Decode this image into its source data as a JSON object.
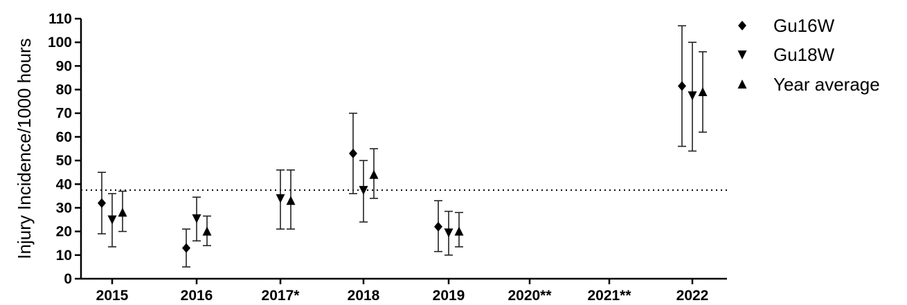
{
  "chart_data": {
    "type": "scatter",
    "title": "",
    "xlabel": "",
    "ylabel": "Injury Incidence/1000 hours",
    "categories": [
      "2015",
      "2016",
      "2017*",
      "2018",
      "2019",
      "2020**",
      "2021**",
      "2022"
    ],
    "ylim": [
      0,
      110
    ],
    "yticks": [
      0,
      10,
      20,
      30,
      40,
      50,
      60,
      70,
      80,
      90,
      100,
      110
    ],
    "reference_line": {
      "value": 37.5,
      "style": "dotted"
    },
    "legend_position": "right",
    "series": [
      {
        "name": "Gu16W",
        "marker": "diamond",
        "values": [
          32,
          13,
          null,
          53,
          22,
          null,
          null,
          81.5
        ],
        "error_low": [
          19,
          5,
          null,
          36,
          11.5,
          null,
          null,
          56
        ],
        "error_high": [
          45,
          21,
          null,
          70,
          33,
          null,
          null,
          107
        ]
      },
      {
        "name": "Gu18W",
        "marker": "triangle-down",
        "values": [
          25,
          25.5,
          34,
          37.5,
          19.5,
          null,
          null,
          77.5
        ],
        "error_low": [
          13.5,
          16,
          21,
          24,
          10,
          null,
          null,
          54
        ],
        "error_high": [
          36,
          34.5,
          46,
          50,
          28.5,
          null,
          null,
          100
        ]
      },
      {
        "name": "Year average",
        "marker": "triangle-up",
        "values": [
          28,
          20,
          33,
          44,
          20,
          null,
          null,
          79
        ],
        "error_low": [
          20,
          14,
          21,
          34,
          13.5,
          null,
          null,
          62
        ],
        "error_high": [
          37,
          26.5,
          46,
          55,
          28,
          null,
          null,
          96
        ]
      }
    ]
  }
}
